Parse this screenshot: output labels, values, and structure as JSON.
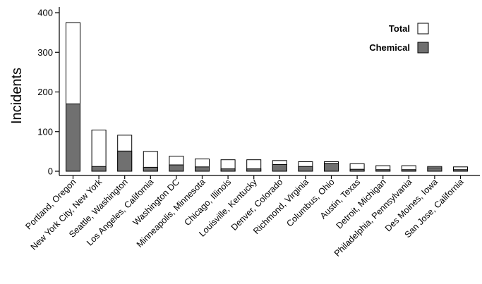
{
  "chart_data": {
    "type": "bar",
    "stacked_overlay": true,
    "title": "",
    "xlabel": "",
    "ylabel": "Incidents",
    "ylim": [
      0,
      400
    ],
    "yticks": [
      0,
      100,
      200,
      300,
      400
    ],
    "grid": false,
    "legend_position": "top-right",
    "categories": [
      "Portland, Oregon",
      "New York City, New York",
      "Seattle, Washington",
      "Los Angeles, California",
      "Washington DC",
      "Minneapolis, Minnesota",
      "Chicago, Illinois",
      "Louisville, Kentucky",
      "Denver, Colorado",
      "Richmond, Virginia",
      "Columbus, Ohio",
      "Austin, Texas",
      "Detroit, Michigan",
      "Philadelphia, Pennsylvania",
      "Des Moines, Iowa",
      "San Jose, California"
    ],
    "series": [
      {
        "name": "Total",
        "color": "#ffffff",
        "values": [
          375,
          104,
          91,
          50,
          38,
          31,
          29,
          29,
          27,
          24,
          24,
          19,
          14,
          14,
          12,
          11
        ]
      },
      {
        "name": "Chemical",
        "color": "#707070",
        "values": [
          170,
          12,
          51,
          10,
          16,
          11,
          6,
          6,
          17,
          12,
          20,
          5,
          4,
          4,
          9,
          4
        ]
      }
    ]
  }
}
